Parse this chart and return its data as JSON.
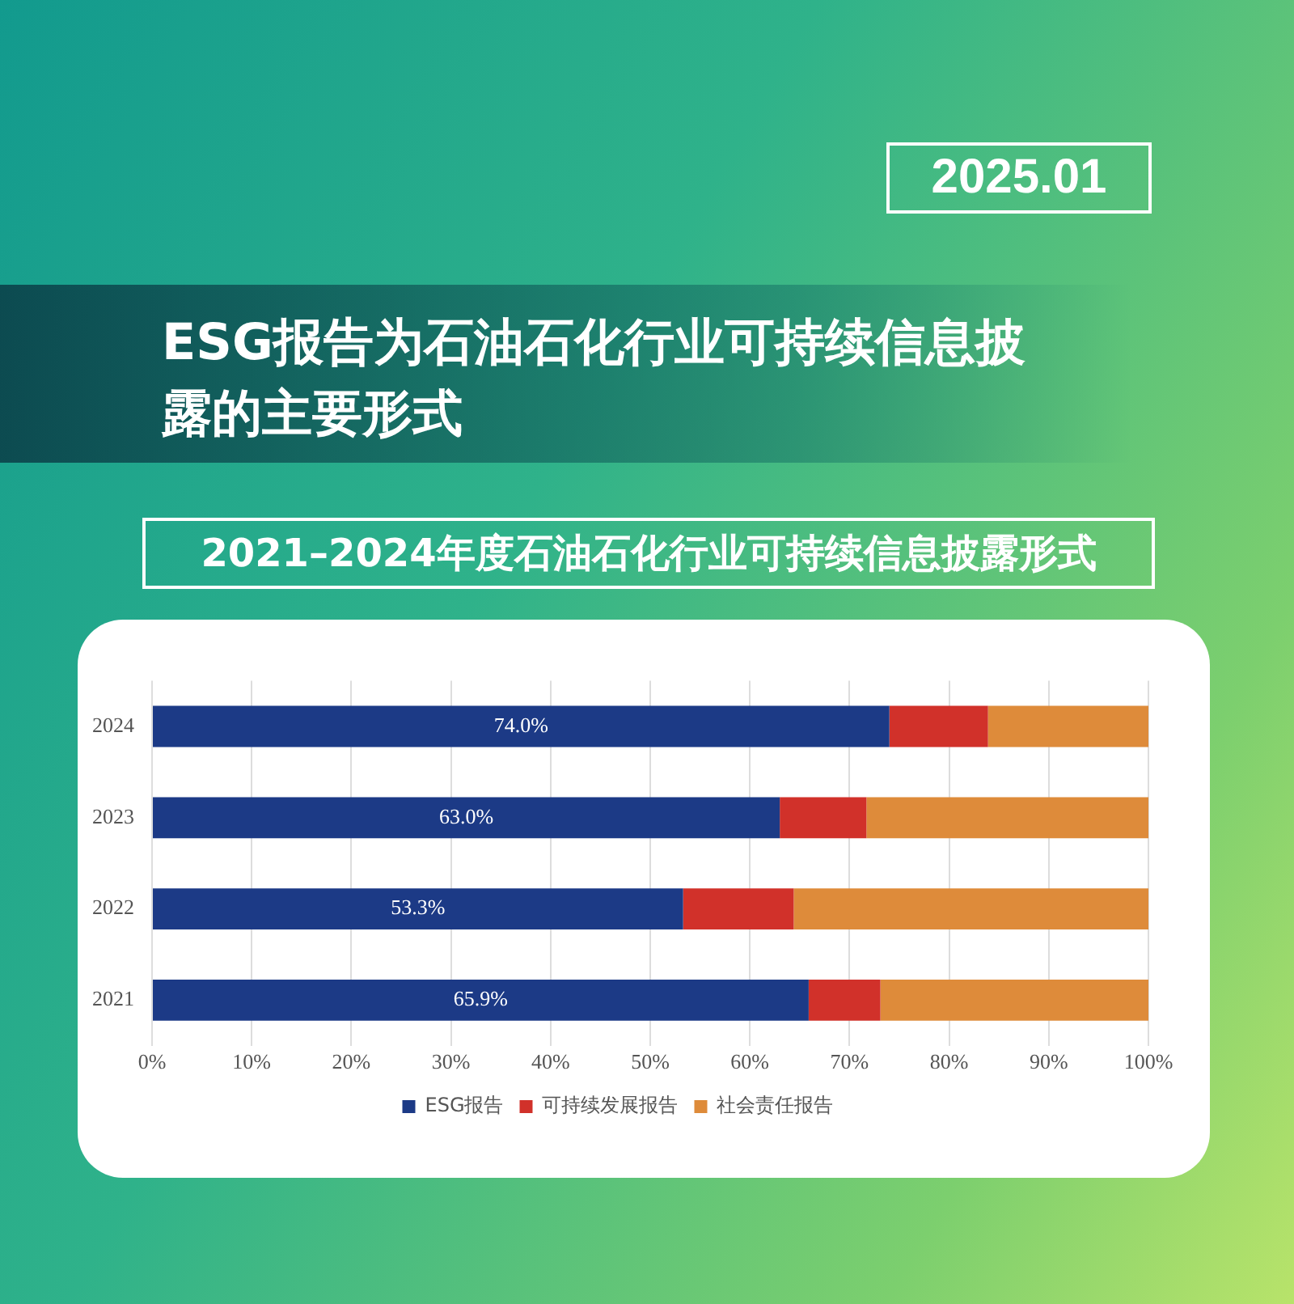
{
  "chart_data": {
    "type": "bar",
    "title": "ESG报告为石油石化行业可持续信息披露的主要形式",
    "subtitle": "2021–2024年度石油石化行业可持续信息披露形式",
    "annotations": [
      "2025.01"
    ],
    "orientation": "horizontal",
    "stacked": true,
    "categories": [
      "2024",
      "2023",
      "2022",
      "2021"
    ],
    "series": [
      {
        "name": "ESG报告",
        "color": "#1c3a86",
        "values": [
          74.0,
          63.0,
          53.3,
          65.9
        ],
        "value_labels": [
          "74.0%",
          "63.0%",
          "53.3%",
          "65.9%"
        ]
      },
      {
        "name": "可持续发展报告",
        "color": "#d1312a",
        "values": [
          9.9,
          8.7,
          11.1,
          7.2
        ]
      },
      {
        "name": "社会责任报告",
        "color": "#de8b3a",
        "values": [
          16.1,
          28.3,
          35.6,
          26.9
        ]
      }
    ],
    "xlim": [
      0,
      100
    ],
    "xticks": [
      {
        "value": 0,
        "label": "0%"
      },
      {
        "value": 10,
        "label": "10%"
      },
      {
        "value": 20,
        "label": "20%"
      },
      {
        "value": 30,
        "label": "30%"
      },
      {
        "value": 40,
        "label": "40%"
      },
      {
        "value": 50,
        "label": "50%"
      },
      {
        "value": 60,
        "label": "60%"
      },
      {
        "value": 70,
        "label": "70%"
      },
      {
        "value": 80,
        "label": "80%"
      },
      {
        "value": 90,
        "label": "90%"
      },
      {
        "value": 100,
        "label": "100%"
      }
    ],
    "grid": "x",
    "legend": "bottom"
  }
}
